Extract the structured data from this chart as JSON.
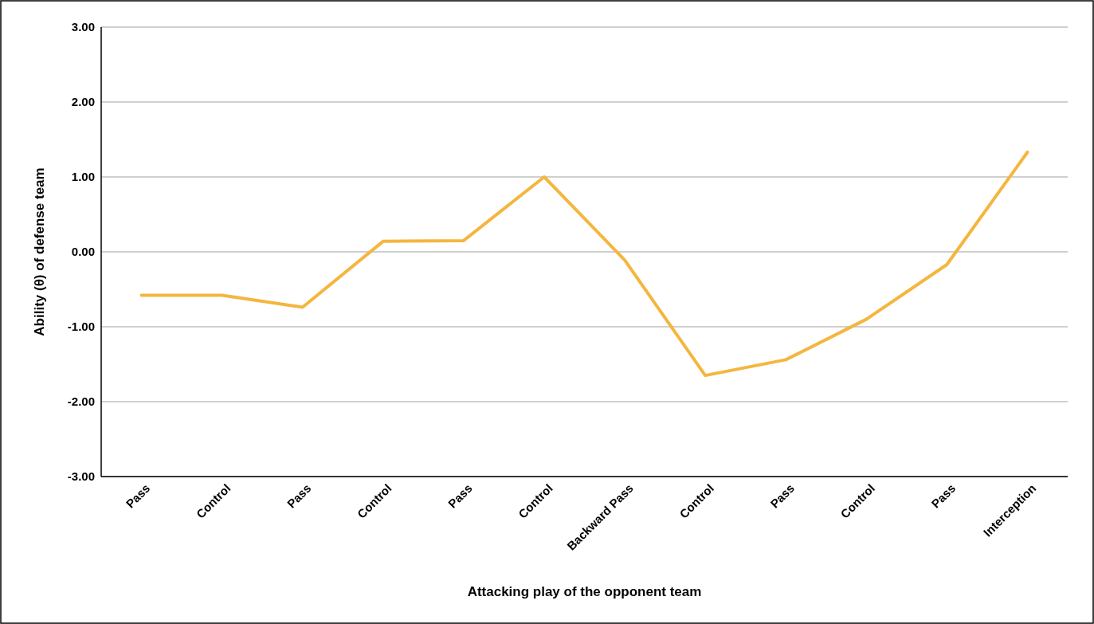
{
  "chart_data": {
    "type": "line",
    "xlabel": "Attacking play of the opponent team",
    "ylabel": "Ability (θ) of defense team",
    "categories": [
      "Pass",
      "Control",
      "Pass",
      "Control",
      "Pass",
      "Control",
      "Backward Pass",
      "Control",
      "Pass",
      "Control",
      "Pass",
      "Interception"
    ],
    "series": [
      {
        "color": "#f4b63f",
        "values": [
          -0.58,
          -0.58,
          -0.74,
          0.14,
          0.15,
          1.0,
          -0.11,
          -1.65,
          -1.44,
          -0.9,
          -0.17,
          1.33
        ]
      }
    ],
    "ylim": [
      -3,
      3
    ],
    "yticks": [
      {
        "value": -3,
        "label": "-3.00"
      },
      {
        "value": -2,
        "label": "-2.00"
      },
      {
        "value": -1,
        "label": "-1.00"
      },
      {
        "value": 0,
        "label": "0.00"
      },
      {
        "value": 1,
        "label": "1.00"
      },
      {
        "value": 2,
        "label": "2.00"
      },
      {
        "value": 3,
        "label": "3.00"
      }
    ],
    "grid": "y",
    "marker": "none",
    "line_style": "solid"
  }
}
